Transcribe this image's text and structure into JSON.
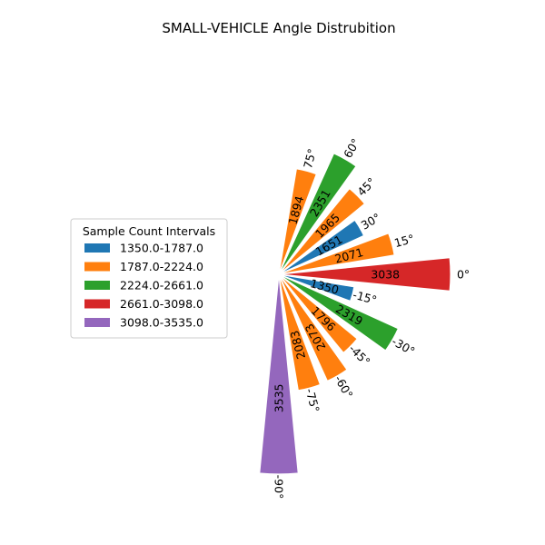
{
  "chart_data": {
    "type": "bar",
    "subtype": "polar-half-rose",
    "title": "SMALL-VEHICLE Angle Distrubition",
    "angles": [
      "0°",
      "15°",
      "30°",
      "45°",
      "60°",
      "75°",
      "-90°",
      "-75°",
      "-60°",
      "-45°",
      "-30°",
      "-15°"
    ],
    "angle_degrees": [
      0,
      15,
      30,
      45,
      60,
      75,
      -90,
      -75,
      -60,
      -45,
      -30,
      -15
    ],
    "values": [
      3038,
      2071,
      1651,
      1965,
      2351,
      1894,
      3535,
      2083,
      2073,
      1796,
      2319,
      1350
    ],
    "value_max": 3535,
    "legend": {
      "title": "Sample Count Intervals",
      "placement": "left",
      "items": [
        {
          "label": "1350.0-1787.0",
          "color": "#1f77b4",
          "min": 1350.0,
          "max": 1787.0
        },
        {
          "label": "1787.0-2224.0",
          "color": "#ff7f0e",
          "min": 1787.0,
          "max": 2224.0
        },
        {
          "label": "2224.0-2661.0",
          "color": "#2ca02c",
          "min": 2224.0,
          "max": 2661.0
        },
        {
          "label": "2661.0-3098.0",
          "color": "#d62728",
          "min": 2661.0,
          "max": 3098.0
        },
        {
          "label": "3098.0-3535.0",
          "color": "#9467bd",
          "min": 3098.0,
          "max": 3535.0
        }
      ]
    },
    "grid": false
  }
}
